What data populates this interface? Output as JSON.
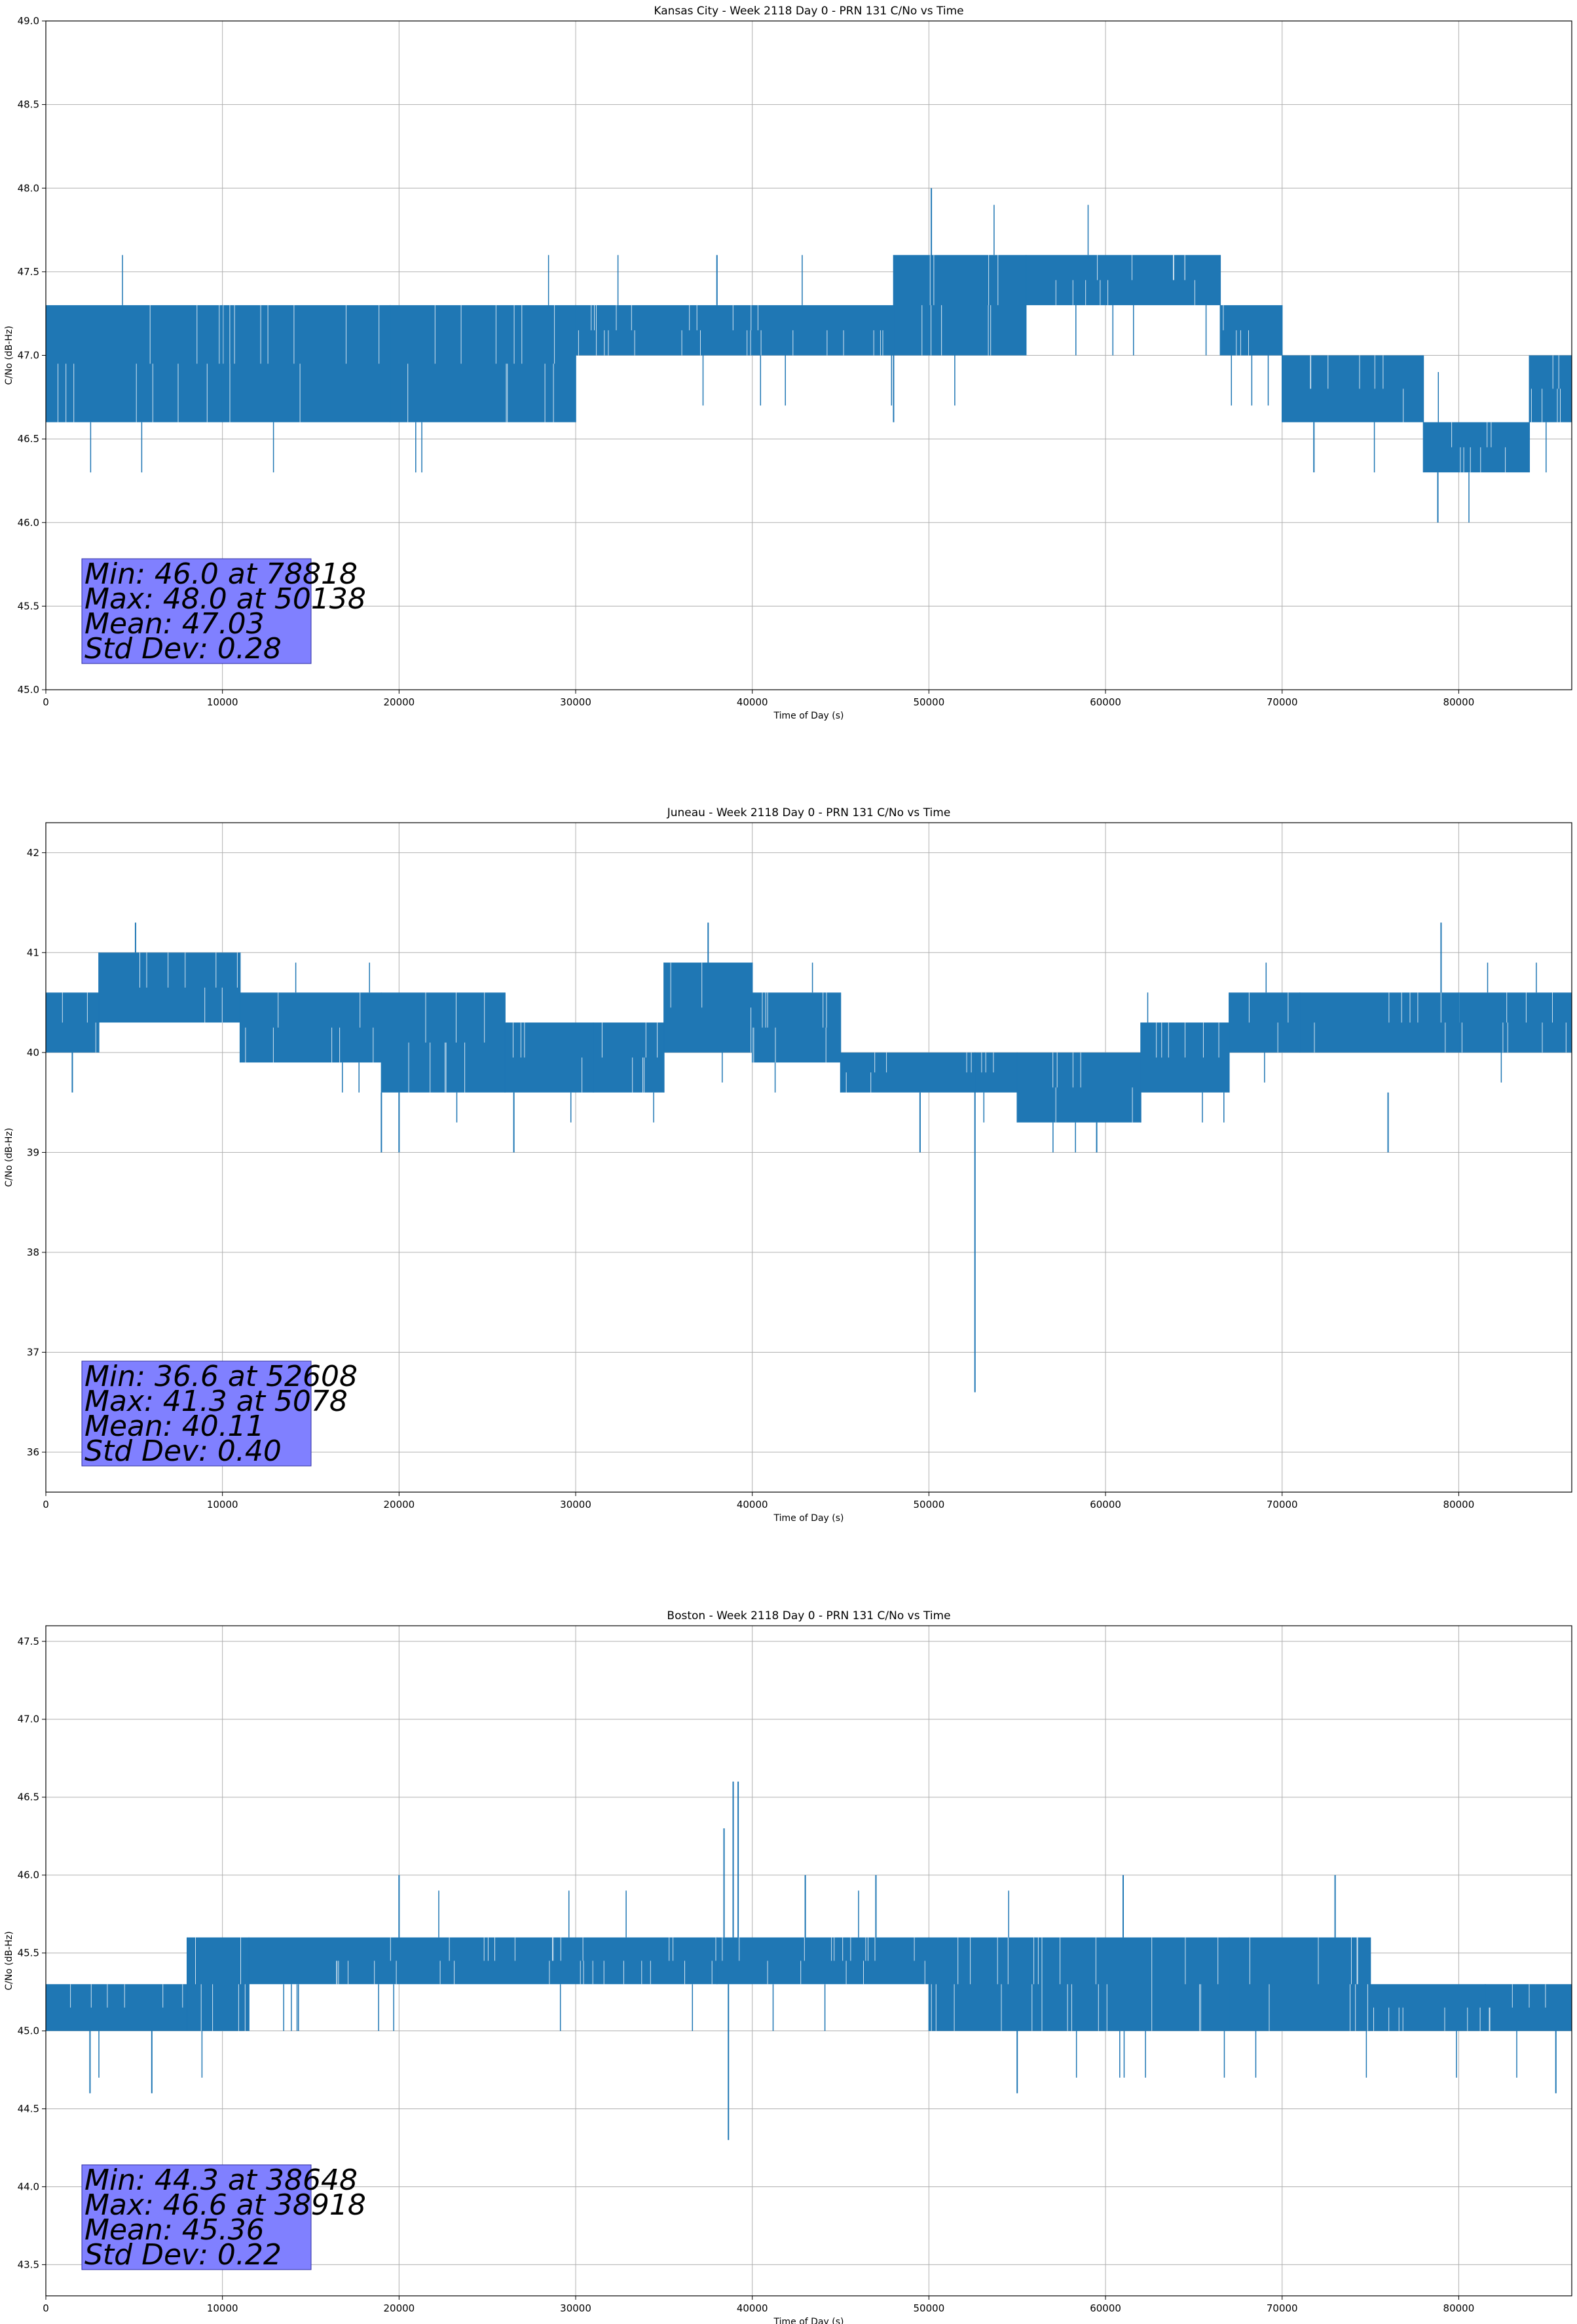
{
  "figure": {
    "line_color": "#1f77b4",
    "stats_box_color": "#8080ff"
  },
  "chart_data": [
    {
      "type": "line",
      "title": "Kansas City - Week 2118 Day 0 - PRN 131 C/No vs Time",
      "xlabel": "Time of Day (s)",
      "ylabel": "C/No (dB-Hz)",
      "xlim": [
        0,
        86400
      ],
      "ylim": [
        45.0,
        49.0
      ],
      "x_ticks": [
        0,
        10000,
        20000,
        30000,
        40000,
        50000,
        60000,
        70000,
        80000
      ],
      "x_tick_labels": [
        "0",
        "10000",
        "20000",
        "30000",
        "40000",
        "50000",
        "60000",
        "70000",
        "80000"
      ],
      "y_ticks": [
        45.0,
        45.5,
        46.0,
        46.5,
        47.0,
        47.5,
        48.0,
        48.5,
        49.0
      ],
      "y_tick_labels": [
        "45.0",
        "45.5",
        "46.0",
        "46.5",
        "47.0",
        "47.5",
        "48.0",
        "48.5",
        "49.0"
      ],
      "grid": true,
      "stats_position": "bottom-left",
      "stats": {
        "min": "Min: 46.0 at 78818",
        "max": "Max: 48.0 at 50138",
        "mean": "Mean: 47.03",
        "std": "Std Dev: 0.28"
      },
      "bands": [
        {
          "x": [
            0,
            10000
          ],
          "y": [
            46.6,
            47.3
          ]
        },
        {
          "x": [
            10000,
            19500
          ],
          "y": [
            46.6,
            47.3
          ]
        },
        {
          "x": [
            19500,
            30000
          ],
          "y": [
            46.6,
            47.3
          ]
        },
        {
          "x": [
            30000,
            48000
          ],
          "y": [
            47.0,
            47.3
          ]
        },
        {
          "x": [
            48000,
            55500
          ],
          "y": [
            47.0,
            47.6
          ]
        },
        {
          "x": [
            55500,
            66500
          ],
          "y": [
            47.3,
            47.6
          ]
        },
        {
          "x": [
            66500,
            70000
          ],
          "y": [
            47.0,
            47.3
          ]
        },
        {
          "x": [
            70000,
            78000
          ],
          "y": [
            46.6,
            47.0
          ]
        },
        {
          "x": [
            78000,
            84000
          ],
          "y": [
            46.3,
            46.6
          ]
        },
        {
          "x": [
            84000,
            86400
          ],
          "y": [
            46.6,
            47.0
          ]
        }
      ],
      "spikes": [
        {
          "x": 50138,
          "y0": 47.3,
          "y1": 48.0
        },
        {
          "x": 78818,
          "y0": 46.3,
          "y1": 46.0
        },
        {
          "x": 38000,
          "y0": 47.3,
          "y1": 47.6
        },
        {
          "x": 71800,
          "y0": 46.6,
          "y1": 46.3
        },
        {
          "x": 48000,
          "y0": 47.0,
          "y1": 46.6
        }
      ]
    },
    {
      "type": "line",
      "title": "Juneau - Week 2118 Day 0 - PRN 131 C/No vs Time",
      "xlabel": "Time of Day (s)",
      "ylabel": "C/No (dB-Hz)",
      "xlim": [
        0,
        86400
      ],
      "ylim": [
        35.6,
        42.3
      ],
      "x_ticks": [
        0,
        10000,
        20000,
        30000,
        40000,
        50000,
        60000,
        70000,
        80000
      ],
      "x_tick_labels": [
        "0",
        "10000",
        "20000",
        "30000",
        "40000",
        "50000",
        "60000",
        "70000",
        "80000"
      ],
      "y_ticks": [
        36,
        37,
        38,
        39,
        40,
        41,
        42
      ],
      "y_tick_labels": [
        "36",
        "37",
        "38",
        "39",
        "40",
        "41",
        "42"
      ],
      "grid": true,
      "stats_position": "bottom-left",
      "stats": {
        "min": "Min: 36.6 at 52608",
        "max": "Max: 41.3 at 5078",
        "mean": "Mean: 40.11",
        "std": "Std Dev: 0.40"
      },
      "bands": [
        {
          "x": [
            0,
            3000
          ],
          "y": [
            40.0,
            40.6
          ]
        },
        {
          "x": [
            3000,
            11000
          ],
          "y": [
            40.3,
            41.0
          ]
        },
        {
          "x": [
            11000,
            19000
          ],
          "y": [
            39.9,
            40.6
          ]
        },
        {
          "x": [
            19000,
            26000
          ],
          "y": [
            39.6,
            40.6
          ]
        },
        {
          "x": [
            26000,
            31000
          ],
          "y": [
            39.6,
            40.3
          ]
        },
        {
          "x": [
            31000,
            35000
          ],
          "y": [
            39.6,
            40.3
          ]
        },
        {
          "x": [
            35000,
            40000
          ],
          "y": [
            40.0,
            40.9
          ]
        },
        {
          "x": [
            40000,
            45000
          ],
          "y": [
            39.9,
            40.6
          ]
        },
        {
          "x": [
            45000,
            55000
          ],
          "y": [
            39.6,
            40.0
          ]
        },
        {
          "x": [
            55000,
            62000
          ],
          "y": [
            39.3,
            40.0
          ]
        },
        {
          "x": [
            62000,
            67000
          ],
          "y": [
            39.6,
            40.3
          ]
        },
        {
          "x": [
            67000,
            71000
          ],
          "y": [
            40.0,
            40.6
          ]
        },
        {
          "x": [
            71000,
            80000
          ],
          "y": [
            40.0,
            40.6
          ]
        },
        {
          "x": [
            80000,
            86400
          ],
          "y": [
            40.0,
            40.6
          ]
        }
      ],
      "spikes": [
        {
          "x": 52608,
          "y0": 40.0,
          "y1": 36.6
        },
        {
          "x": 5078,
          "y0": 41.0,
          "y1": 41.3
        },
        {
          "x": 19000,
          "y0": 39.6,
          "y1": 39.0
        },
        {
          "x": 20000,
          "y0": 39.6,
          "y1": 39.0
        },
        {
          "x": 26500,
          "y0": 39.6,
          "y1": 39.0
        },
        {
          "x": 37500,
          "y0": 40.9,
          "y1": 41.3
        },
        {
          "x": 49500,
          "y0": 39.6,
          "y1": 39.0
        },
        {
          "x": 59500,
          "y0": 39.3,
          "y1": 39.0
        },
        {
          "x": 76000,
          "y0": 39.6,
          "y1": 39.0
        },
        {
          "x": 79000,
          "y0": 40.6,
          "y1": 41.3
        },
        {
          "x": 1500,
          "y0": 40.0,
          "y1": 39.6
        }
      ]
    },
    {
      "type": "line",
      "title": "Boston - Week 2118 Day 0 - PRN 131 C/No vs Time",
      "xlabel": "Time of Day (s)",
      "ylabel": "C/No (dB-Hz)",
      "xlim": [
        0,
        86400
      ],
      "ylim": [
        43.3,
        47.6
      ],
      "x_ticks": [
        0,
        10000,
        20000,
        30000,
        40000,
        50000,
        60000,
        70000,
        80000
      ],
      "x_tick_labels": [
        "0",
        "10000",
        "20000",
        "30000",
        "40000",
        "50000",
        "60000",
        "70000",
        "80000"
      ],
      "y_ticks": [
        43.5,
        44.0,
        44.5,
        45.0,
        45.5,
        46.0,
        46.5,
        47.0,
        47.5
      ],
      "y_tick_labels": [
        "43.5",
        "44.0",
        "44.5",
        "45.0",
        "45.5",
        "46.0",
        "46.5",
        "47.0",
        "47.5"
      ],
      "grid": true,
      "stats_position": "bottom-left",
      "stats": {
        "min": "Min: 44.3 at 38648",
        "max": "Max: 46.6 at 38918",
        "mean": "Mean: 45.36",
        "std": "Std Dev: 0.22"
      },
      "bands": [
        {
          "x": [
            0,
            8000
          ],
          "y": [
            45.0,
            45.3
          ]
        },
        {
          "x": [
            8000,
            11500
          ],
          "y": [
            45.0,
            45.6
          ]
        },
        {
          "x": [
            11500,
            38000
          ],
          "y": [
            45.3,
            45.6
          ]
        },
        {
          "x": [
            38000,
            50000
          ],
          "y": [
            45.3,
            45.6
          ]
        },
        {
          "x": [
            50000,
            56000
          ],
          "y": [
            45.0,
            45.6
          ]
        },
        {
          "x": [
            56000,
            67000
          ],
          "y": [
            45.0,
            45.6
          ]
        },
        {
          "x": [
            67000,
            75000
          ],
          "y": [
            45.0,
            45.6
          ]
        },
        {
          "x": [
            75000,
            81500
          ],
          "y": [
            45.0,
            45.3
          ]
        },
        {
          "x": [
            81500,
            86400
          ],
          "y": [
            45.0,
            45.3
          ]
        }
      ],
      "spikes": [
        {
          "x": 38648,
          "y0": 45.3,
          "y1": 44.3
        },
        {
          "x": 38918,
          "y0": 45.6,
          "y1": 46.6
        },
        {
          "x": 39200,
          "y0": 45.6,
          "y1": 46.6
        },
        {
          "x": 38400,
          "y0": 45.6,
          "y1": 46.3
        },
        {
          "x": 20000,
          "y0": 45.6,
          "y1": 46.0
        },
        {
          "x": 43000,
          "y0": 45.6,
          "y1": 46.0
        },
        {
          "x": 47000,
          "y0": 45.6,
          "y1": 46.0
        },
        {
          "x": 61000,
          "y0": 45.6,
          "y1": 46.0
        },
        {
          "x": 73000,
          "y0": 45.6,
          "y1": 46.0
        },
        {
          "x": 2500,
          "y0": 45.0,
          "y1": 44.6
        },
        {
          "x": 6000,
          "y0": 45.0,
          "y1": 44.6
        },
        {
          "x": 55000,
          "y0": 45.0,
          "y1": 44.6
        },
        {
          "x": 85500,
          "y0": 45.0,
          "y1": 44.6
        }
      ]
    }
  ]
}
